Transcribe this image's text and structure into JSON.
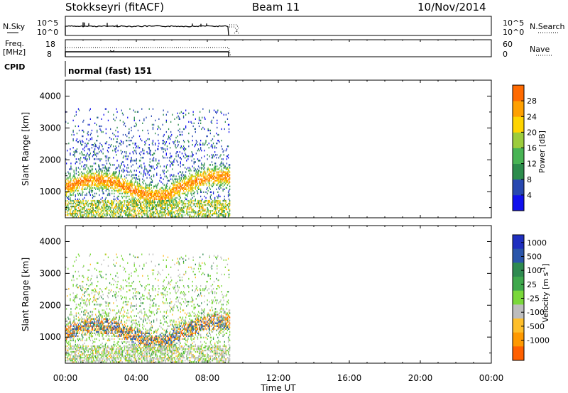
{
  "header": {
    "station": "Stokkseyri (fitACF)",
    "beam": "Beam 11",
    "date": "10/Nov/2014"
  },
  "panels": {
    "nsky": {
      "label": "N.Sky",
      "left_ticks": [
        "10^5",
        "10^0"
      ],
      "right_ticks": [
        "10^5",
        "10^0"
      ],
      "right_label": "N.Search"
    },
    "freq": {
      "label_line1": "Freq.",
      "label_line2": "[MHz]",
      "left_ticks": [
        "18",
        "8"
      ],
      "right_ticks": [
        "60",
        "0"
      ],
      "right_label": "Nave"
    },
    "cpid": {
      "label": "CPID",
      "value": "normal (fast) 151"
    }
  },
  "colors": {
    "power": [
      "#1010ee",
      "#2848b0",
      "#2c8c4c",
      "#48b454",
      "#9ccc3c",
      "#ffd400",
      "#ffa000",
      "#ff6a00",
      "#ff1d00"
    ],
    "velocity": [
      "#ff0000",
      "#ff6000",
      "#ff9900",
      "#ffbf2a",
      "#bdbdbd",
      "#7ad83a",
      "#3ea84c",
      "#2e8a50",
      "#2a55aa",
      "#1f2fbf"
    ]
  },
  "chart_data": [
    {
      "type": "heatmap",
      "name": "power",
      "ylabel": "Slant Range [km]",
      "y_ticks": [
        1000,
        2000,
        3000,
        4000
      ],
      "ylim": [
        180,
        4500
      ],
      "colorbar": {
        "label": "Power [dB]",
        "ticks": [
          "4",
          "8",
          "12",
          "16",
          "20",
          "24",
          "28"
        ],
        "range": [
          0,
          32
        ]
      },
      "data_extent_hours": [
        0.0,
        9.25
      ]
    },
    {
      "type": "heatmap",
      "name": "velocity",
      "ylabel": "Slant Range [km]",
      "y_ticks": [
        1000,
        2000,
        3000,
        4000
      ],
      "ylim": [
        180,
        4500
      ],
      "colorbar": {
        "label": "Velocity [m s^-1]",
        "ticks": [
          "1000",
          "500",
          "100",
          "25",
          "-25",
          "-100",
          "-500",
          "-1000"
        ]
      },
      "data_extent_hours": [
        0.0,
        9.25
      ]
    }
  ],
  "x_axis": {
    "label": "Time UT",
    "ticks": [
      "00:00",
      "04:00",
      "08:00",
      "12:00",
      "16:00",
      "20:00",
      "00:00"
    ],
    "range_hours": [
      0,
      24
    ]
  }
}
